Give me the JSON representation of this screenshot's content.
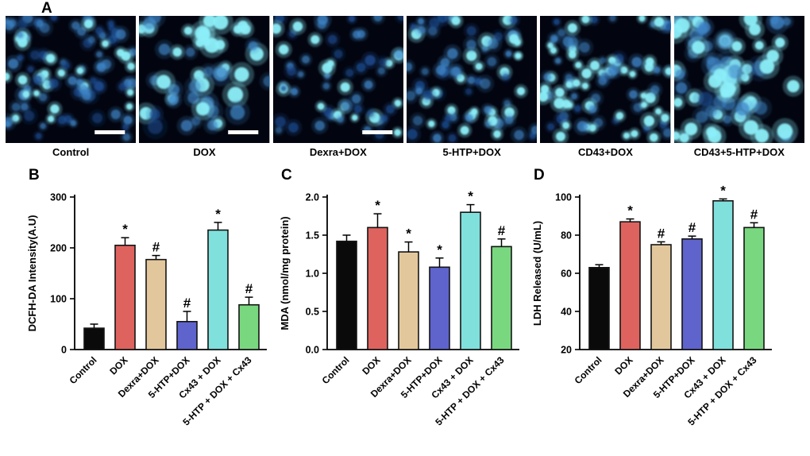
{
  "figure": {
    "panel_a": {
      "label": "A",
      "images": [
        {
          "caption": "Control"
        },
        {
          "caption": "DOX"
        },
        {
          "caption": "Dexra+DOX"
        },
        {
          "caption": "5-HTP+DOX"
        },
        {
          "caption": "CD43+DOX"
        },
        {
          "caption": "CD43+5-HTP+DOX"
        }
      ]
    }
  },
  "chart_data": [
    {
      "panel": "B",
      "type": "bar",
      "ylabel": "DCFH-DA Intensity(A.U)",
      "categories": [
        "Control",
        "DOX",
        "Dexra+DOX",
        "5-HTP+DOX",
        "Cx43 + DOX",
        "5-HTP + DOX + Cx43"
      ],
      "values": [
        42,
        205,
        177,
        55,
        235,
        88
      ],
      "errors": [
        8,
        15,
        8,
        20,
        15,
        15
      ],
      "annotations": [
        "",
        "*",
        "#",
        "#",
        "*",
        "#"
      ],
      "ylim": [
        0,
        300
      ],
      "yticks": [
        0,
        100,
        200,
        300
      ],
      "ytick_labels": [
        "0",
        "100",
        "200",
        "300"
      ],
      "legend": "none",
      "grid": false
    },
    {
      "panel": "C",
      "type": "bar",
      "ylabel": "MDA (nmol/mg protein)",
      "categories": [
        "Control",
        "DOX",
        "Dexra+DOX",
        "5-HTP+DOX",
        "Cx43 + DOX",
        "5-HTP + DOX + Cx43"
      ],
      "values": [
        1.42,
        1.6,
        1.28,
        1.08,
        1.8,
        1.35
      ],
      "errors": [
        0.08,
        0.18,
        0.13,
        0.12,
        0.1,
        0.1
      ],
      "annotations": [
        "",
        "*",
        "*",
        "*",
        "*",
        "#"
      ],
      "ylim": [
        0,
        2.0
      ],
      "yticks": [
        0,
        0.5,
        1.0,
        1.5,
        2.0
      ],
      "ytick_labels": [
        "0.0",
        "0.5",
        "1.0",
        "1.5",
        "2.0"
      ],
      "legend": "none",
      "grid": false
    },
    {
      "panel": "D",
      "type": "bar",
      "ylabel": "LDH Released (U/mL)",
      "categories": [
        "Control",
        "DOX",
        "Dexra+DOX",
        "5-HTP+DOX",
        "Cx43 + DOX",
        "5-HTP + DOX + Cx43"
      ],
      "values": [
        63,
        87,
        75,
        78,
        98,
        84
      ],
      "errors": [
        1.5,
        1.5,
        1.5,
        1.5,
        1.0,
        2.5
      ],
      "annotations": [
        "",
        "*",
        "#",
        "#",
        "*",
        "#"
      ],
      "ylim": [
        20,
        100
      ],
      "yticks": [
        20,
        40,
        60,
        80,
        100
      ],
      "ytick_labels": [
        "20",
        "40",
        "60",
        "80",
        "100"
      ],
      "legend": "none",
      "grid": false
    }
  ],
  "colors": {
    "bar_colors": [
      "#0a0a0a",
      "#de635e",
      "#e3c79c",
      "#5f63cc",
      "#80e0dc",
      "#79d87f"
    ],
    "bar_outline": "#141414",
    "micro_background": "#020510",
    "cell_dim": "#1d4f96",
    "cell_mid": "#3f86c8",
    "cell_bright": "#8beef8",
    "scalebar": "#ffffff"
  }
}
